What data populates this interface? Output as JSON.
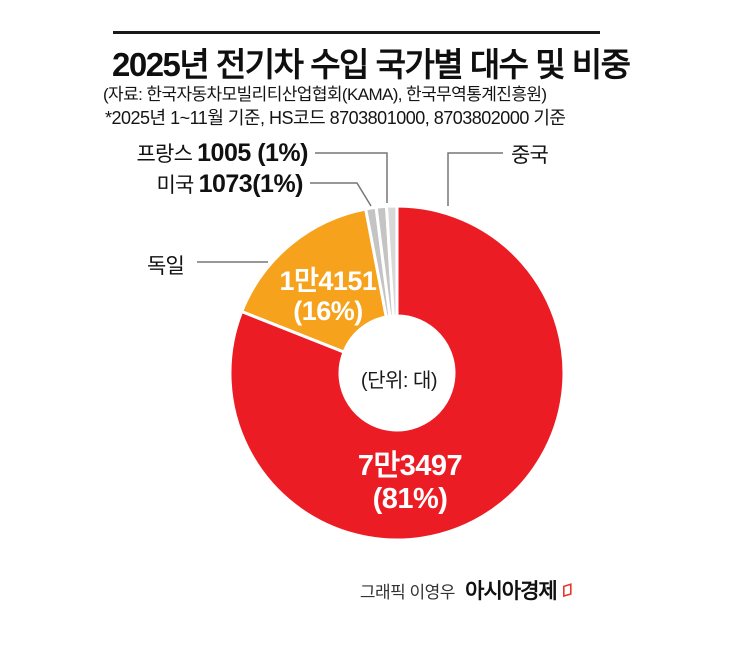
{
  "header": {
    "title": "2025년 전기차 수입 국가별 대수 및 비중",
    "source": "(자료: 한국자동차모빌리티산업협회(KAMA), 한국무역통계진흥원)",
    "note": "*2025년 1~11월 기준, HS코드 8703801000, 8703802000 기준"
  },
  "chart_data": {
    "type": "pie",
    "title": "2025년 전기차 수입 국가별 대수 및 비중",
    "donut": true,
    "unit_label": "(단위: 대)",
    "start_angle_deg": 0,
    "clockwise": true,
    "legend_position": "callout-labels",
    "segments": [
      {
        "name": "중국",
        "value": 73497,
        "value_label": "7만3497",
        "pct": 81,
        "pct_label": "(81%)",
        "color": "#EC1C24",
        "label_inside": true
      },
      {
        "name": "독일",
        "value": 14151,
        "value_label": "1만4151",
        "pct": 16,
        "pct_label": "(16%)",
        "color": "#F6A21D",
        "label_inside": true
      },
      {
        "name": "미국",
        "value": 1073,
        "value_label": "1073",
        "pct": 1,
        "pct_label": "(1%)",
        "color": "#C4C4C4",
        "label_inside": false
      },
      {
        "name": "프랑스",
        "value": 1005,
        "value_label": "1005",
        "pct": 1,
        "pct_label": "(1%)",
        "color": "#C4C4C4",
        "label_inside": false
      },
      {
        "name": "",
        "value": null,
        "value_label": "",
        "pct": 1,
        "pct_label": "",
        "color": "#D8D8D8",
        "label_inside": false
      }
    ]
  },
  "callouts": {
    "france": {
      "country": "프랑스",
      "value_text": "1005 (1%)"
    },
    "usa": {
      "country": "미국",
      "value_text": "1073(1%)"
    },
    "germany": {
      "country": "독일"
    },
    "china": {
      "country": "중국"
    }
  },
  "credit": {
    "byline": "그래픽 이영우",
    "brand": "아시아경제",
    "brand_mark_color": "#E8362D"
  },
  "colors": {
    "china_red": "#EC1C24",
    "germany_orange": "#F6A21D",
    "gray_sliver": "#C4C4C4",
    "leader_line": "#777777",
    "rule": "#1a1a1a"
  }
}
